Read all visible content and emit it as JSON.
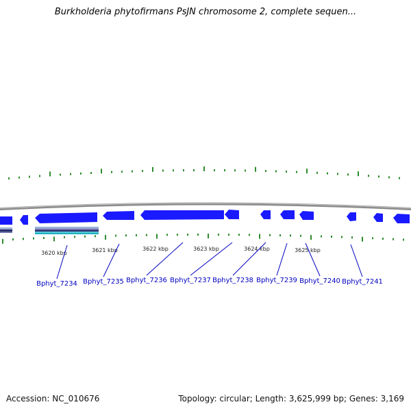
{
  "title": "Burkholderia phytofirmans PsJN chromosome 2, complete sequen...",
  "accession": "Accession: NC_010676",
  "summary": "Topology: circular; Length: 3,625,999 bp; Genes: 3,169",
  "colors": {
    "background": "#ffffff",
    "backbone": "#8c8c8c",
    "gene_fill": "#1a1aff",
    "gene_dark": "#0000c8",
    "tick": "#2e8b2e",
    "label_link": "#0000c0",
    "track_blend": [
      "#9db0d8",
      "#6b6fa8",
      "#2b2f6b",
      "#55c8d8",
      "#1fb0c0"
    ]
  },
  "ticks": [
    "3620 kbp",
    "3621 kbp",
    "3622 kbp",
    "3623 kbp",
    "3624 kbp",
    "3625 kbp"
  ],
  "genes": [
    {
      "label": "Bphyt_7234"
    },
    {
      "label": "Bphyt_7235"
    },
    {
      "label": "Bphyt_7236"
    },
    {
      "label": "Bphyt_7237"
    },
    {
      "label": "Bphyt_7238"
    },
    {
      "label": "Bphyt_7239"
    },
    {
      "label": "Bphyt_7240"
    },
    {
      "label": "Bphyt_7241"
    }
  ]
}
